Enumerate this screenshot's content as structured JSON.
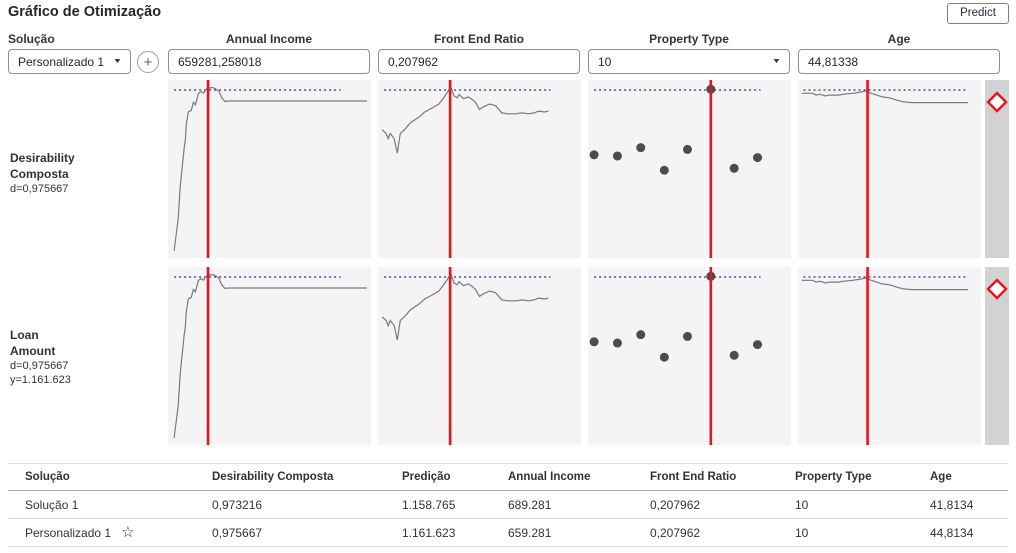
{
  "header": {
    "title": "Gráfico de Otimização",
    "predict_label": "Predict"
  },
  "icons": {
    "add": "+",
    "chevron": "▼",
    "star": "☆"
  },
  "colors": {
    "accent_red": "#e8131d",
    "dotted_blue": "#2020d8",
    "curve": "#7a7a7a",
    "dot": "#4c4c4c",
    "panel_bg": "#f4f4f4",
    "strip_bg": "#d2d2d2"
  },
  "controls": {
    "solution_label": "Solução",
    "solution_value": "Personalizado 1",
    "factors": [
      {
        "label": "Annual Income",
        "value": "659281,258018"
      },
      {
        "label": "Front End Ratio",
        "value": "0,207962"
      },
      {
        "label": "Property Type",
        "value": "10"
      },
      {
        "label": "Age",
        "value": "44,81338"
      }
    ]
  },
  "rows": [
    {
      "title_lines": [
        "Desirability",
        "Composta"
      ],
      "stats": [
        "d=0,975667",
        ""
      ]
    },
    {
      "title_lines": [
        "Loan",
        "Amount"
      ],
      "stats": [
        "d=0,975667",
        "y=1.161.623"
      ]
    }
  ],
  "chart_data": {
    "type": "line",
    "title": "Gráfico de Otimização (prediction profiler)",
    "responses": [
      "Desirability Composta d=0,975667",
      "Loan Amount d=0,975667 y=1.161.623"
    ],
    "factors": [
      "Annual Income",
      "Front End Ratio",
      "Property Type",
      "Age"
    ],
    "current_settings": [
      659281.258018,
      0.207962,
      "10",
      44.81338
    ],
    "legend_position": "none",
    "grid": false,
    "note": "Coordinates are normalized 0-1 within each unlabeled profiler panel; red_x = current factor setting, dotted_y = optimal response level",
    "panels": [
      {
        "factor": "Annual Income",
        "kind": "line",
        "red_x": 0.197,
        "dotted_y": 0.056,
        "dotted_span": [
          0.03,
          0.85
        ],
        "points": [
          [
            0.03,
            0.96
          ],
          [
            0.05,
            0.78
          ],
          [
            0.06,
            0.6
          ],
          [
            0.08,
            0.38
          ],
          [
            0.085,
            0.34
          ],
          [
            0.09,
            0.25
          ],
          [
            0.1,
            0.18
          ],
          [
            0.115,
            0.17
          ],
          [
            0.125,
            0.125
          ],
          [
            0.135,
            0.14
          ],
          [
            0.15,
            0.075
          ],
          [
            0.165,
            0.065
          ],
          [
            0.175,
            0.075
          ],
          [
            0.19,
            0.05
          ],
          [
            0.205,
            0.045
          ],
          [
            0.22,
            0.042
          ],
          [
            0.235,
            0.05
          ],
          [
            0.25,
            0.062
          ],
          [
            0.265,
            0.1
          ],
          [
            0.28,
            0.12
          ],
          [
            0.3,
            0.118
          ],
          [
            0.98,
            0.118
          ]
        ]
      },
      {
        "factor": "Front End Ratio",
        "kind": "line",
        "red_x": 0.355,
        "dotted_y": 0.056,
        "dotted_span": [
          0.03,
          0.85
        ],
        "points": [
          [
            0.02,
            0.28
          ],
          [
            0.04,
            0.3
          ],
          [
            0.05,
            0.33
          ],
          [
            0.06,
            0.3
          ],
          [
            0.08,
            0.33
          ],
          [
            0.095,
            0.41
          ],
          [
            0.11,
            0.3
          ],
          [
            0.13,
            0.28
          ],
          [
            0.16,
            0.24
          ],
          [
            0.2,
            0.21
          ],
          [
            0.23,
            0.18
          ],
          [
            0.27,
            0.155
          ],
          [
            0.3,
            0.135
          ],
          [
            0.33,
            0.09
          ],
          [
            0.35,
            0.055
          ],
          [
            0.36,
            0.045
          ],
          [
            0.375,
            0.09
          ],
          [
            0.39,
            0.1
          ],
          [
            0.4,
            0.082
          ],
          [
            0.42,
            0.105
          ],
          [
            0.445,
            0.095
          ],
          [
            0.465,
            0.11
          ],
          [
            0.48,
            0.125
          ],
          [
            0.5,
            0.165
          ],
          [
            0.52,
            0.15
          ],
          [
            0.55,
            0.135
          ],
          [
            0.58,
            0.145
          ],
          [
            0.61,
            0.185
          ],
          [
            0.64,
            0.19
          ],
          [
            0.68,
            0.19
          ],
          [
            0.71,
            0.185
          ],
          [
            0.74,
            0.19
          ],
          [
            0.77,
            0.185
          ],
          [
            0.79,
            0.175
          ],
          [
            0.82,
            0.18
          ],
          [
            0.84,
            0.175
          ]
        ]
      },
      {
        "factor": "Property Type",
        "kind": "scatter",
        "red_x": 0.605,
        "dotted_y": 0.056,
        "dotted_span": [
          0.03,
          0.85
        ],
        "points": [
          [
            0.03,
            0.42
          ],
          [
            0.145,
            0.427
          ],
          [
            0.26,
            0.38
          ],
          [
            0.376,
            0.507
          ],
          [
            0.49,
            0.39
          ],
          [
            0.605,
            0.052
          ],
          [
            0.72,
            0.496
          ],
          [
            0.835,
            0.436
          ]
        ]
      },
      {
        "factor": "Age",
        "kind": "line",
        "red_x": 0.38,
        "dotted_y": 0.056,
        "dotted_span": [
          0.03,
          0.93
        ],
        "points": [
          [
            0.02,
            0.075
          ],
          [
            0.08,
            0.075
          ],
          [
            0.1,
            0.085
          ],
          [
            0.12,
            0.08
          ],
          [
            0.15,
            0.09
          ],
          [
            0.17,
            0.085
          ],
          [
            0.22,
            0.085
          ],
          [
            0.25,
            0.08
          ],
          [
            0.3,
            0.075
          ],
          [
            0.34,
            0.068
          ],
          [
            0.37,
            0.062
          ],
          [
            0.4,
            0.075
          ],
          [
            0.43,
            0.085
          ],
          [
            0.46,
            0.095
          ],
          [
            0.5,
            0.1
          ],
          [
            0.53,
            0.11
          ],
          [
            0.57,
            0.122
          ],
          [
            0.62,
            0.127
          ],
          [
            0.93,
            0.127
          ]
        ]
      }
    ]
  },
  "table": {
    "headers": [
      "Solução",
      "Desirability Composta",
      "Predição",
      "Annual Income",
      "Front End Ratio",
      "Property Type",
      "Age"
    ],
    "rows": [
      {
        "cells": [
          "Solução 1",
          "0,973216",
          "1.158.765",
          "689.281",
          "0,207962",
          "10",
          "41,8134"
        ],
        "starred": false
      },
      {
        "cells": [
          "Personalizado 1",
          "0,975667",
          "1.161.623",
          "659.281",
          "0,207962",
          "10",
          "44,8134"
        ],
        "starred": true
      }
    ]
  }
}
